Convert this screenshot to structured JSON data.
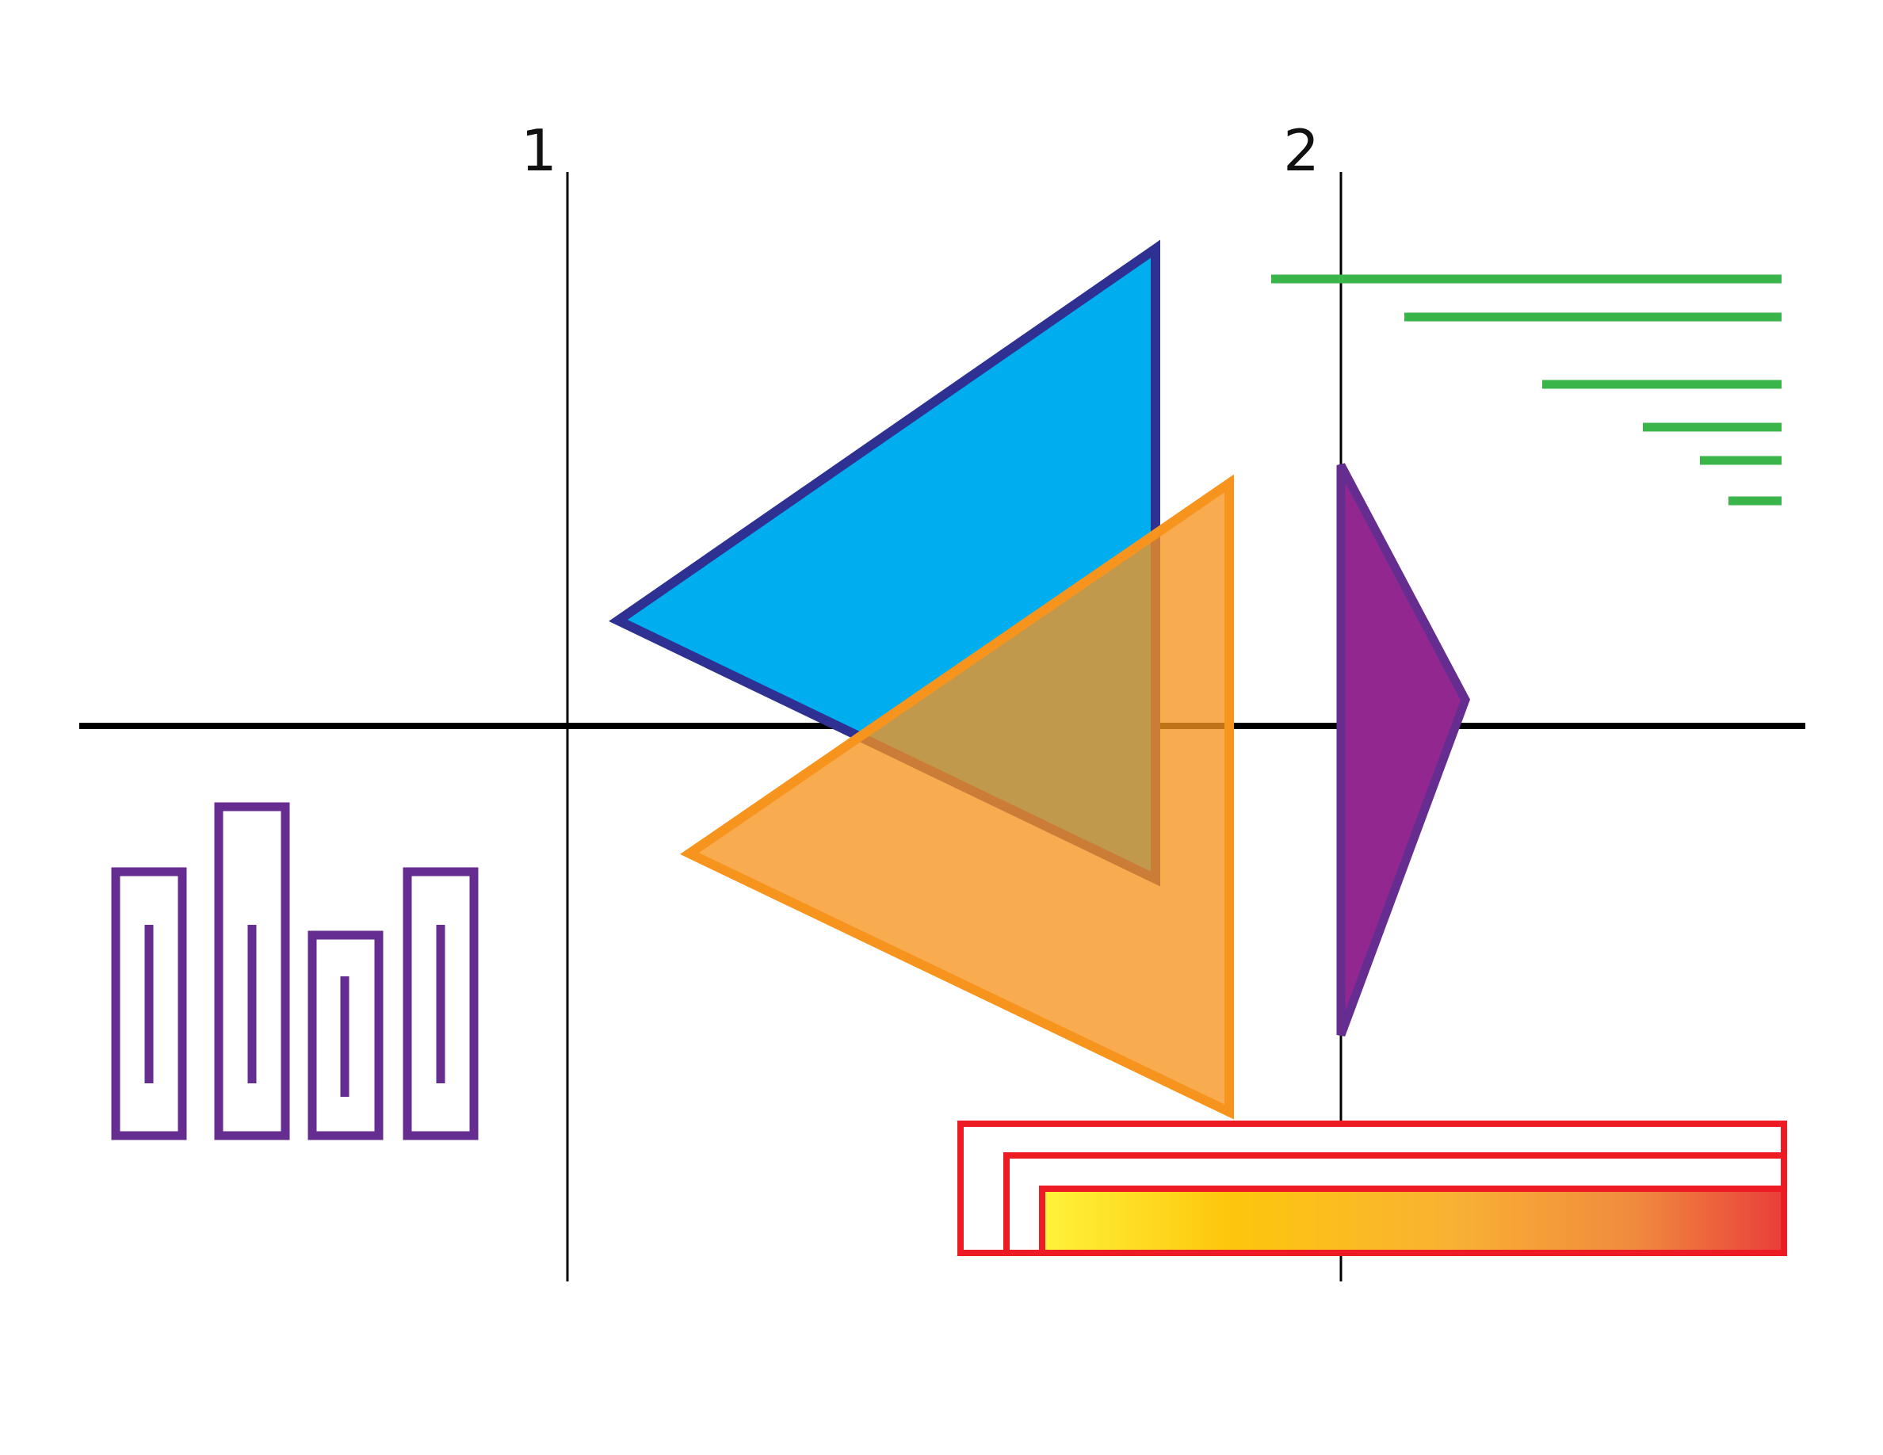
{
  "labels": {
    "marker_1": "1",
    "marker_2": "2"
  },
  "colors": {
    "axis": "#000000",
    "guide": "#000000",
    "blue_fill": "#00AEEF",
    "blue_stroke": "#2E3192",
    "orange_fill": "#F7A84B",
    "orange_stroke": "#F7941D",
    "overlap": "#D09A50",
    "purple_fill": "#92278F",
    "purple_stroke": "#662D91",
    "green": "#39B54A",
    "red": "#ED1C24",
    "gradient_start": "#FFF33B",
    "gradient_mid": "#FDC70C",
    "gradient_end": "#E93E3A",
    "bars_stroke": "#662D91"
  }
}
